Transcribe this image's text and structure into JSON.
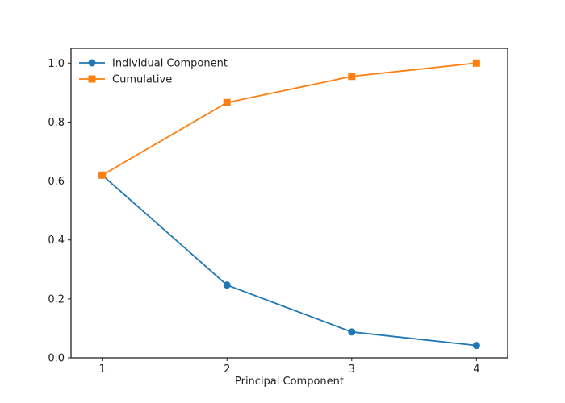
{
  "chart_data": {
    "type": "line",
    "title": "",
    "xlabel": "Principal Component",
    "ylabel": "",
    "x": [
      1,
      2,
      3,
      4
    ],
    "xlim": [
      0.75,
      4.25
    ],
    "ylim": [
      0,
      1.05
    ],
    "xticks": [
      "1",
      "2",
      "3",
      "4"
    ],
    "yticks": [
      "0.0",
      "0.2",
      "0.4",
      "0.6",
      "0.8",
      "1.0"
    ],
    "grid": false,
    "legend_position": "top-left",
    "series": [
      {
        "name": "Individual Component",
        "values": [
          0.62,
          0.247,
          0.088,
          0.042
        ],
        "color": "#1f77b4",
        "marker": "circle"
      },
      {
        "name": "Cumulative",
        "values": [
          0.62,
          0.866,
          0.955,
          1.0
        ],
        "color": "#ff7f0e",
        "marker": "square"
      }
    ]
  }
}
